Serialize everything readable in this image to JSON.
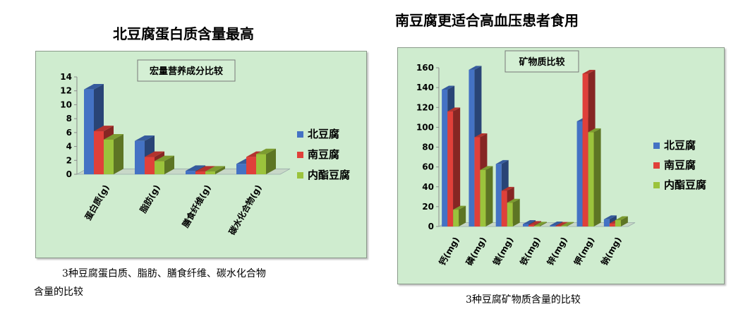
{
  "left": {
    "heading": "北豆腐蛋白质含量最高",
    "caption_line1": "3种豆腐蛋白质、脂肪、膳食纤维、碳水化合物",
    "caption_line2": "含量的比较"
  },
  "right": {
    "heading": "南豆腐更适合高血压患者食用",
    "caption": "3种豆腐矿物质含量的比较"
  },
  "colors": {
    "北豆腐": "#4472c4",
    "南豆腐": "#e0403a",
    "内酯豆腐": "#9bc33c"
  },
  "chart_data": [
    {
      "type": "bar",
      "title": "宏量营养成分比较",
      "categories": [
        "蛋白质(g)",
        "脂肪(g)",
        "膳食纤维(g)",
        "碳水化合物(g)"
      ],
      "series": [
        {
          "name": "北豆腐",
          "values": [
            12.2,
            4.8,
            0.5,
            1.5
          ]
        },
        {
          "name": "南豆腐",
          "values": [
            6.2,
            2.5,
            0.4,
            2.5
          ]
        },
        {
          "name": "内酯豆腐",
          "values": [
            5.0,
            1.9,
            0.4,
            2.9
          ]
        }
      ],
      "ylim": [
        0,
        14
      ],
      "yticks": [
        "0",
        "2",
        "4",
        "6",
        "8",
        "10",
        "12",
        "14"
      ],
      "legend": "right",
      "grid": false
    },
    {
      "type": "bar",
      "title": "矿物质比较",
      "categories": [
        "钙(mg)",
        "磷(mg)",
        "镁(mg)",
        "铁(mg)",
        "锌(mg)",
        "钾(mg)",
        "钠(mg)"
      ],
      "series": [
        {
          "name": "北豆腐",
          "values": [
            138,
            158,
            63,
            2.5,
            1.1,
            106,
            7.3
          ]
        },
        {
          "name": "南豆腐",
          "values": [
            116,
            90,
            36,
            1.5,
            0.6,
            154,
            3.1
          ]
        },
        {
          "name": "内酯豆腐",
          "values": [
            17,
            57,
            24,
            0.8,
            0.6,
            95,
            6.4
          ]
        }
      ],
      "ylim": [
        0,
        160
      ],
      "yticks": [
        "0",
        "20",
        "40",
        "60",
        "80",
        "100",
        "120",
        "140",
        "160"
      ],
      "legend": "right",
      "grid": false
    }
  ]
}
